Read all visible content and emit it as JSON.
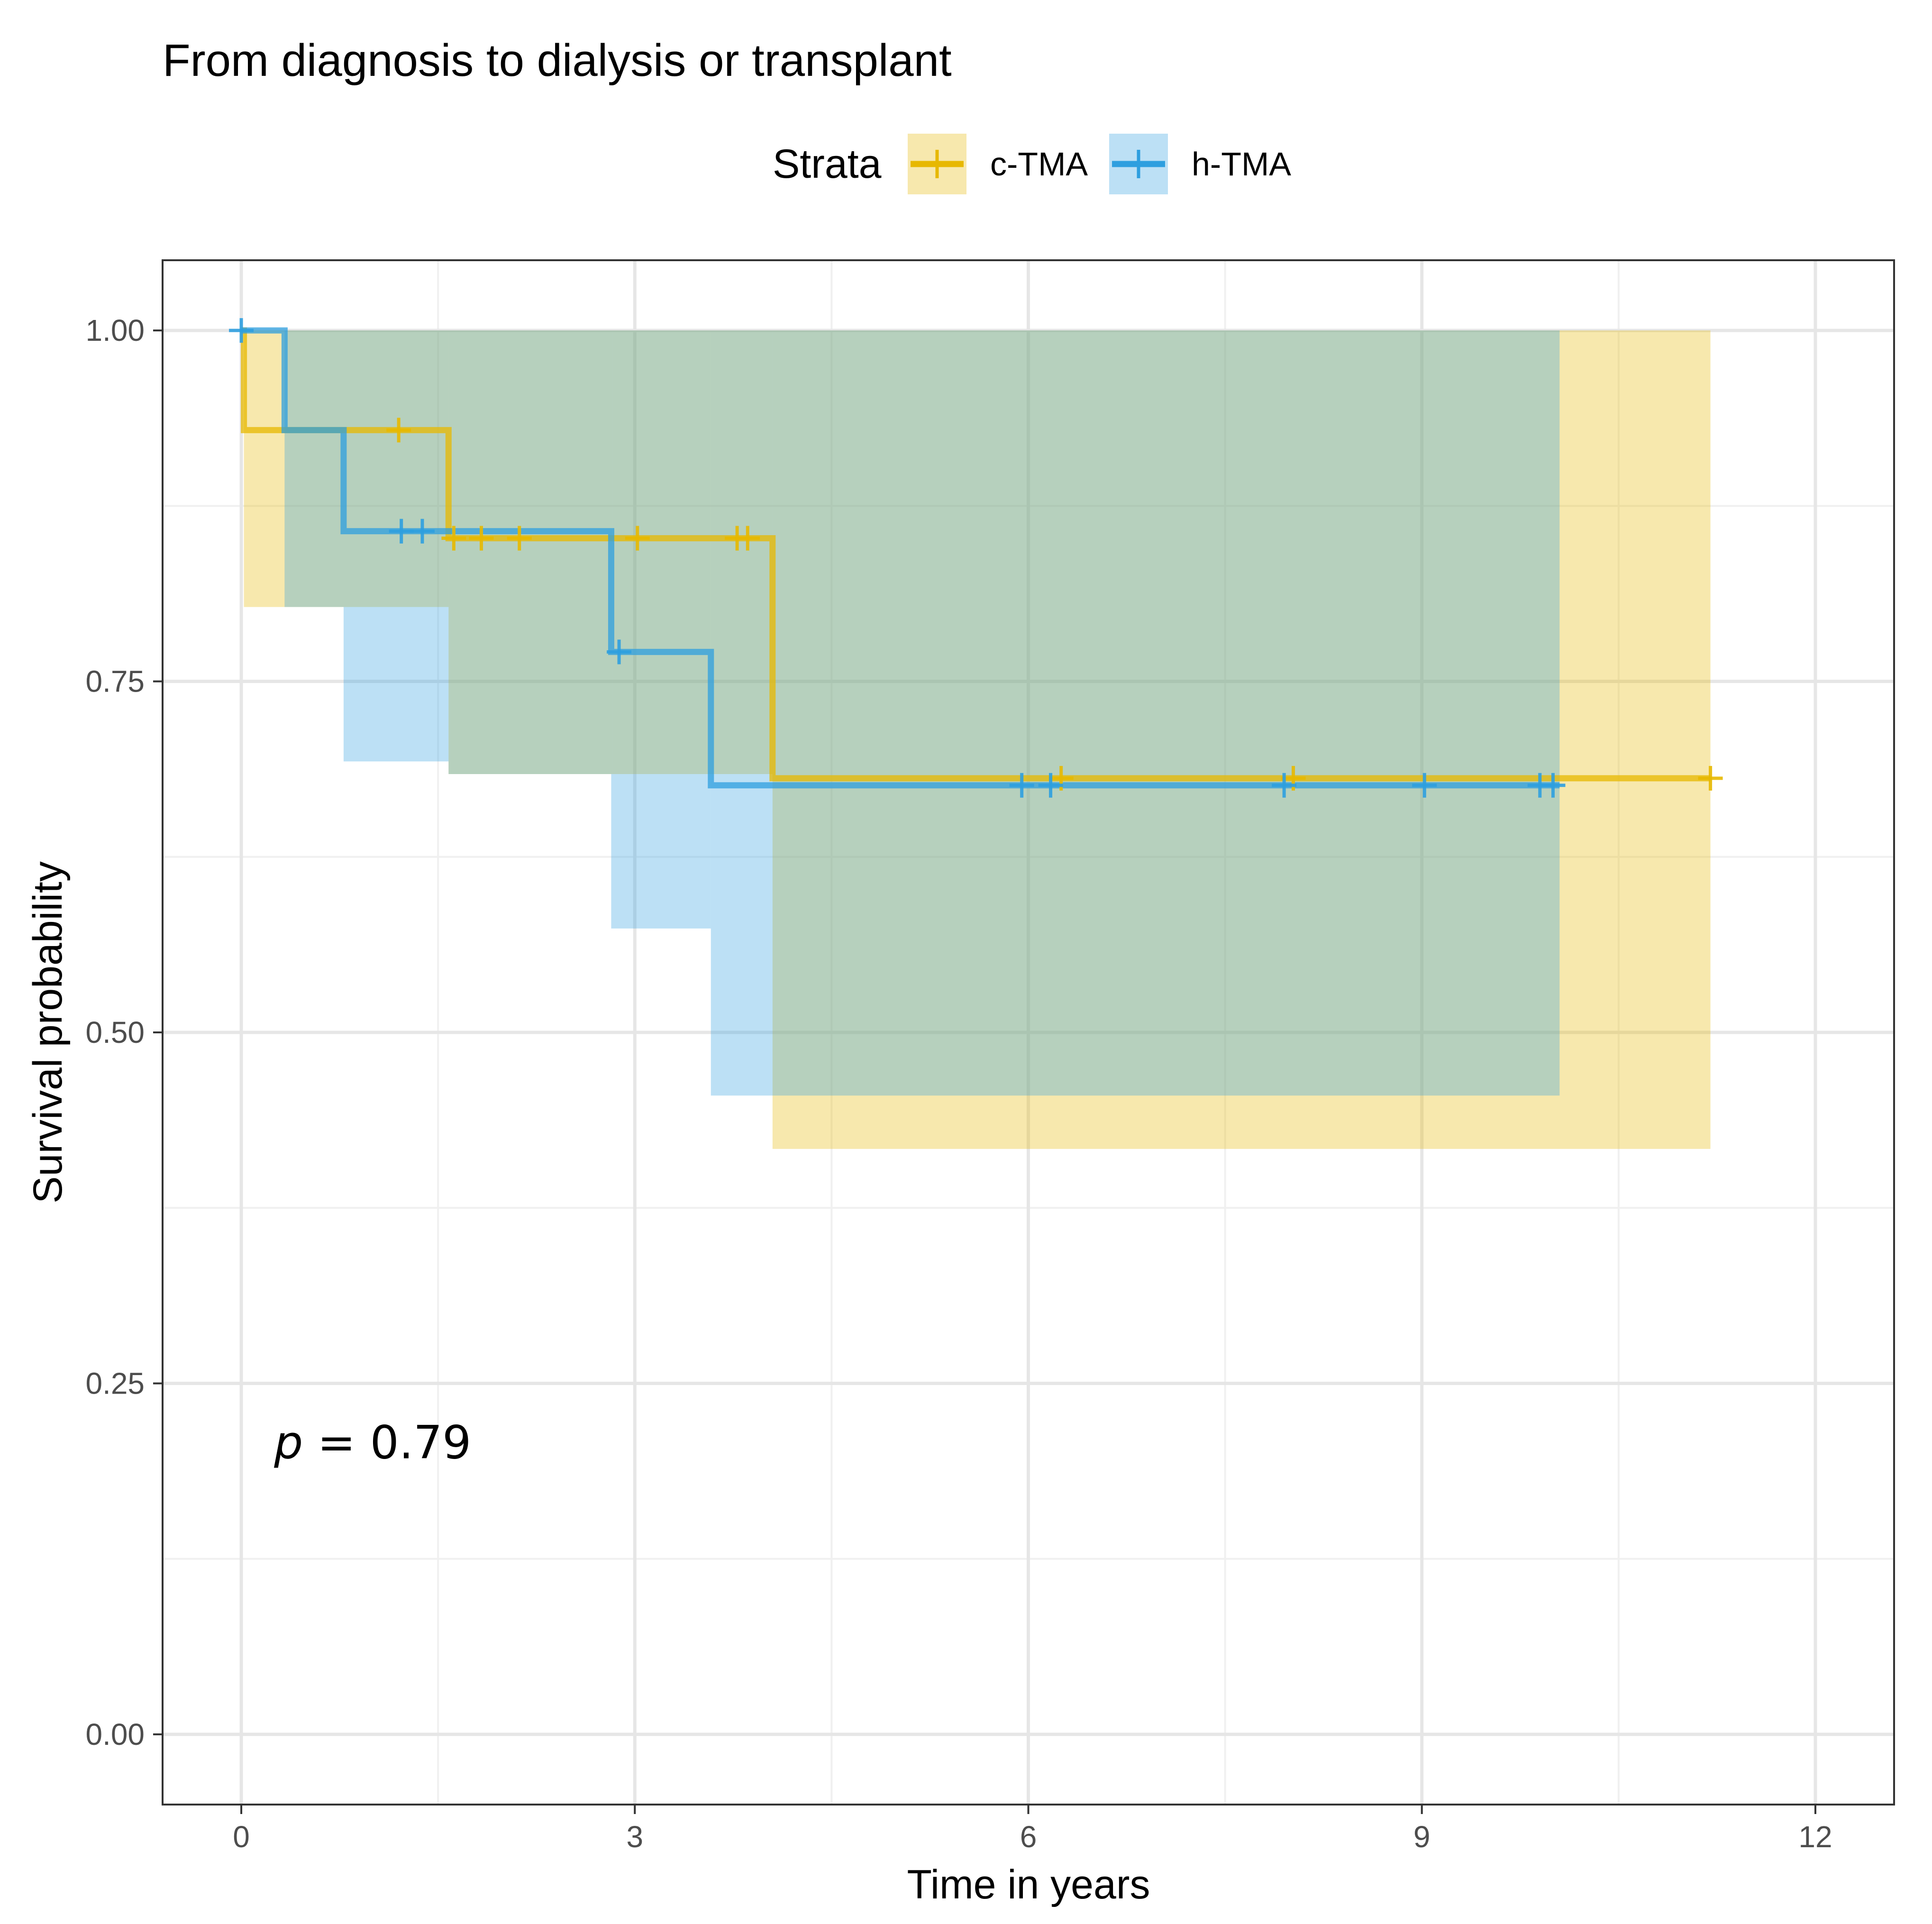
{
  "chart_data": {
    "type": "line",
    "subtype": "kaplan-meier",
    "title": "From diagnosis to dialysis or transplant",
    "xlabel": "Time in years",
    "ylabel": "Survival probability",
    "xlim": [
      -0.6,
      12.6
    ],
    "ylim": [
      -0.05,
      1.05
    ],
    "xticks": [
      0,
      3,
      6,
      9,
      12
    ],
    "xtick_labels": [
      "0",
      "3",
      "6",
      "9",
      "12"
    ],
    "yticks": [
      0,
      0.25,
      0.5,
      0.75,
      1
    ],
    "ytick_labels": [
      "0.00",
      "0.25",
      "0.50",
      "0.75",
      "1.00"
    ],
    "xminor": [
      1.5,
      4.5,
      7.5,
      10.5
    ],
    "yminor": [
      0.125,
      0.375,
      0.625,
      0.875
    ],
    "legend": {
      "title": "Strata",
      "position": "top"
    },
    "annotation": {
      "p_symbol": "p",
      "p_text": " = 0.79",
      "x": 0.25,
      "y": 0.2
    },
    "series": [
      {
        "name": "c-TMA",
        "color": "#E7B800",
        "steps": [
          [
            0,
            1.0
          ],
          [
            0.02,
            0.929
          ],
          [
            1.58,
            0.852
          ],
          [
            4.05,
            0.681
          ],
          [
            11.2,
            0.681
          ]
        ],
        "ci": [
          [
            0,
            0.02,
            1.0,
            1.0
          ],
          [
            0.02,
            1.58,
            0.803,
            1.0
          ],
          [
            1.58,
            2.83,
            0.684,
            1.0
          ],
          [
            2.83,
            4.05,
            0.684,
            1.0
          ],
          [
            4.05,
            11.2,
            0.417,
            1.0
          ]
        ],
        "censors": [
          [
            1.2,
            0.929
          ],
          [
            1.62,
            0.852
          ],
          [
            1.83,
            0.852
          ],
          [
            2.12,
            0.852
          ],
          [
            3.02,
            0.852
          ],
          [
            3.78,
            0.852
          ],
          [
            3.86,
            0.852
          ],
          [
            6.25,
            0.681
          ],
          [
            8.02,
            0.681
          ],
          [
            11.2,
            0.681
          ]
        ]
      },
      {
        "name": "h-TMA",
        "color": "#2E9FDF",
        "steps": [
          [
            0,
            1.0
          ],
          [
            0.33,
            0.929
          ],
          [
            0.78,
            0.857
          ],
          [
            2.82,
            0.771
          ],
          [
            3.58,
            0.676
          ],
          [
            10.05,
            0.676
          ]
        ],
        "ci": [
          [
            0,
            0.33,
            1.0,
            1.0
          ],
          [
            0.33,
            0.78,
            0.803,
            1.0
          ],
          [
            0.78,
            1.58,
            0.693,
            1.0
          ],
          [
            1.58,
            2.82,
            0.684,
            1.0
          ],
          [
            2.82,
            3.58,
            0.574,
            1.0
          ],
          [
            3.58,
            10.05,
            0.455,
            1.0
          ]
        ],
        "censors": [
          [
            0.0,
            1.0
          ],
          [
            1.22,
            0.857
          ],
          [
            1.38,
            0.857
          ],
          [
            2.88,
            0.771
          ],
          [
            5.95,
            0.676
          ],
          [
            6.17,
            0.676
          ],
          [
            7.95,
            0.676
          ],
          [
            9.02,
            0.676
          ],
          [
            9.9,
            0.676
          ],
          [
            10.0,
            0.676
          ]
        ]
      }
    ]
  }
}
